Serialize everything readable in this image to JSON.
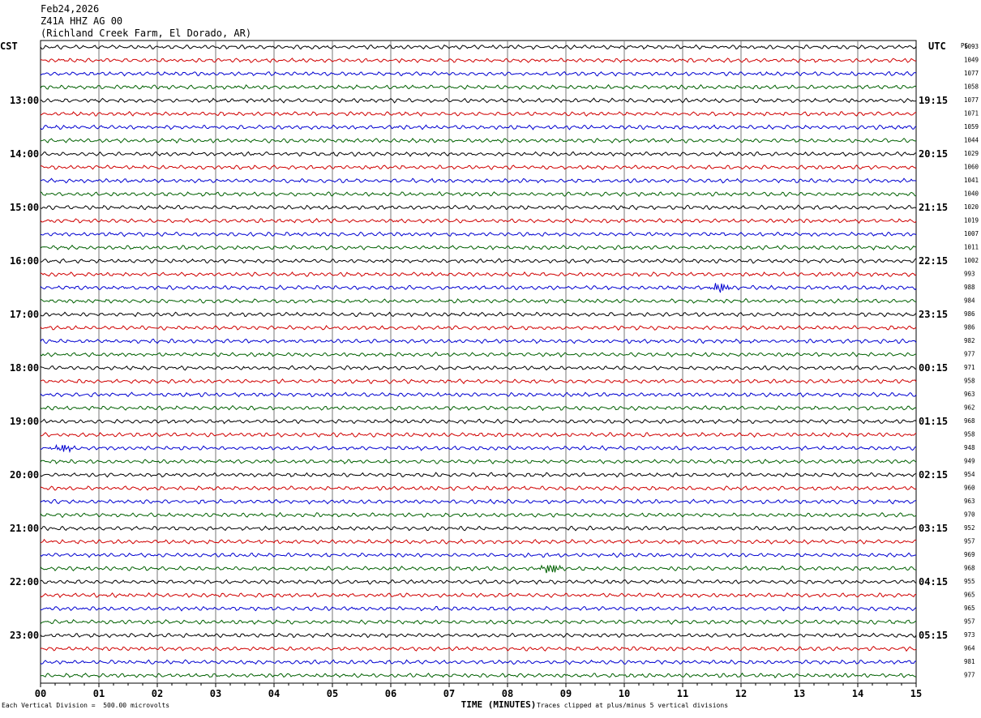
{
  "header": {
    "date": "Feb24,2026",
    "channel": "Z41A HHZ AG 00",
    "location": "(Richland Creek Farm, El Dorado, AR)"
  },
  "left_tz": "CST",
  "right_tz": "UTC",
  "right_col_header": "PG",
  "xlabel": "TIME (MINUTES)",
  "footer_left": "Each Vertical Division =  500.00 microvolts",
  "footer_right": "Traces clipped at plus/minus 5 vertical divisions",
  "chart_data": {
    "type": "line",
    "title": "",
    "xlabel": "TIME (MINUTES)",
    "x_ticks": [
      "00",
      "01",
      "02",
      "03",
      "04",
      "05",
      "06",
      "07",
      "08",
      "09",
      "10",
      "11",
      "12",
      "13",
      "14",
      "15"
    ],
    "xlim": [
      0,
      15
    ],
    "grid": true,
    "trace_colors": [
      "#000000",
      "#d00000",
      "#0000d0",
      "#006000"
    ],
    "left_labels": [
      "13:00",
      "14:00",
      "15:00",
      "16:00",
      "17:00",
      "18:00",
      "19:00",
      "20:00",
      "21:00",
      "22:00",
      "23:00"
    ],
    "right_labels": [
      "19:15",
      "20:15",
      "21:15",
      "22:15",
      "23:15",
      "00:15",
      "01:15",
      "02:15",
      "03:15",
      "04:15",
      "05:15"
    ],
    "row_values": [
      1093,
      1049,
      1077,
      1058,
      1077,
      1071,
      1059,
      1044,
      1029,
      1060,
      1041,
      1040,
      1020,
      1019,
      1007,
      1011,
      1002,
      993,
      988,
      984,
      986,
      986,
      982,
      977,
      971,
      958,
      963,
      962,
      968,
      958,
      948,
      949,
      954,
      960,
      963,
      970,
      952,
      957,
      969,
      968,
      955,
      965,
      965,
      957,
      973,
      964,
      981,
      977
    ],
    "events": [
      {
        "row": 18,
        "minute": 11.65,
        "amplitude": 3.5
      },
      {
        "row": 30,
        "minute": 0.4,
        "amplitude": 3.0
      },
      {
        "row": 39,
        "minute": 8.75,
        "amplitude": 3.8
      }
    ]
  }
}
